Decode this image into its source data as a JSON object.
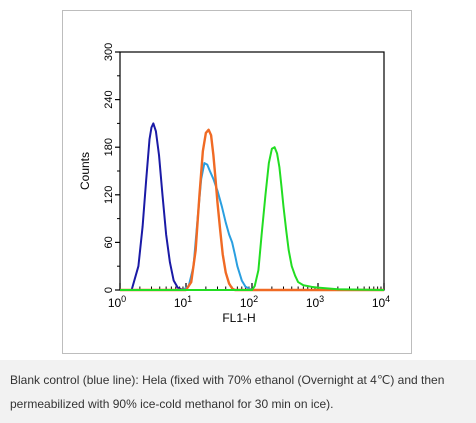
{
  "caption": "Blank control (blue line): Hela (fixed with 70% ethanol (Overnight at 4℃) and then permeabilized with 90% ice-cold methanol for 30 min on ice).",
  "chart_data": {
    "type": "line",
    "title": "",
    "xlabel": "FL1-H",
    "ylabel": "Counts",
    "x_scale": "log",
    "xlim": [
      1,
      10000
    ],
    "ylim": [
      0,
      300
    ],
    "x_ticks": [
      {
        "value": 1,
        "base": "10",
        "exp": "0"
      },
      {
        "value": 10,
        "base": "10",
        "exp": "1"
      },
      {
        "value": 100,
        "base": "10",
        "exp": "2"
      },
      {
        "value": 1000,
        "base": "10",
        "exp": "3"
      },
      {
        "value": 10000,
        "base": "10",
        "exp": "4"
      }
    ],
    "y_ticks": [
      "0",
      "60",
      "120",
      "180",
      "240",
      "300"
    ],
    "grid": false,
    "legend": "none",
    "series": [
      {
        "color": "#1a1aa6",
        "x": [
          1.5,
          1.9,
          2.2,
          2.5,
          2.8,
          3.0,
          3.2,
          3.5,
          3.9,
          4.4,
          5.0,
          5.7,
          6.5,
          7.5,
          9.0,
          20,
          100,
          10000
        ],
        "y": [
          0,
          30,
          80,
          140,
          190,
          205,
          210,
          200,
          170,
          120,
          70,
          35,
          12,
          3,
          0,
          0,
          0,
          0
        ]
      },
      {
        "color": "#2a9fe0",
        "x": [
          1,
          9,
          11,
          13,
          15,
          17,
          19,
          21,
          23,
          26,
          30,
          35,
          40,
          45,
          50,
          55,
          60,
          70,
          80,
          100,
          10000
        ],
        "y": [
          0,
          0,
          5,
          30,
          90,
          140,
          160,
          158,
          150,
          140,
          125,
          105,
          85,
          70,
          60,
          45,
          30,
          12,
          4,
          0,
          0
        ]
      },
      {
        "color": "#f06a24",
        "x": [
          1,
          10,
          12,
          14,
          16,
          18,
          20,
          22,
          24,
          26,
          28,
          30,
          33,
          36,
          40,
          45,
          50,
          55,
          60,
          10000
        ],
        "y": [
          0,
          0,
          10,
          50,
          120,
          175,
          198,
          202,
          195,
          170,
          140,
          110,
          75,
          45,
          22,
          8,
          2,
          0,
          0,
          0
        ]
      },
      {
        "color": "#22dd22",
        "x": [
          1,
          10,
          100,
          110,
          125,
          140,
          160,
          180,
          200,
          220,
          240,
          260,
          280,
          300,
          330,
          360,
          400,
          450,
          500,
          600,
          800,
          1000,
          2000,
          10000
        ],
        "y": [
          0,
          0,
          0,
          5,
          25,
          70,
          120,
          160,
          178,
          180,
          172,
          155,
          130,
          105,
          75,
          50,
          30,
          18,
          10,
          6,
          4,
          3,
          1,
          0
        ]
      }
    ]
  }
}
